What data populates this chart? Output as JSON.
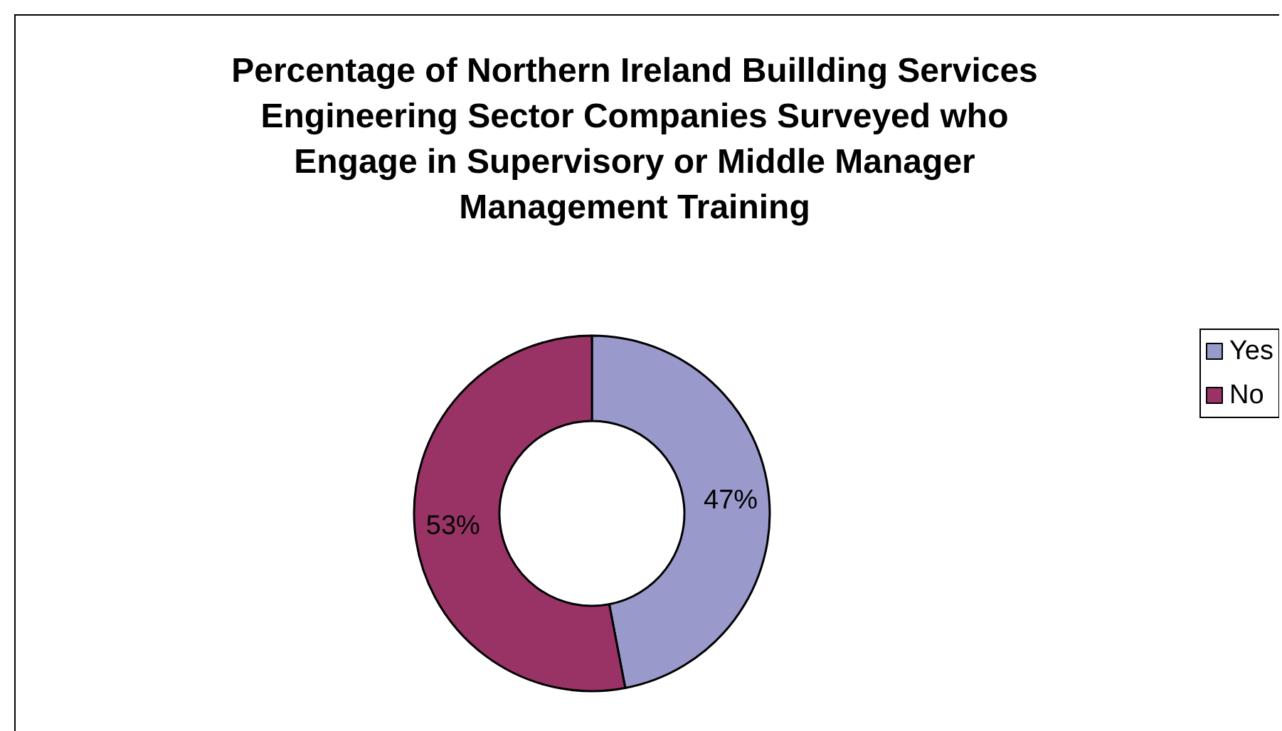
{
  "chart_data": {
    "type": "donut",
    "title": "Percentage of Northern Ireland Buillding Services\nEngineering Sector Companies Surveyed who\nEngage in Supervisory or Middle Manager\nManagement Training",
    "categories": [
      "Yes",
      "No"
    ],
    "values": [
      47,
      53
    ],
    "colors": [
      "#9999cc",
      "#993366"
    ],
    "value_labels": [
      "47%",
      "53%"
    ],
    "legend": "right"
  }
}
